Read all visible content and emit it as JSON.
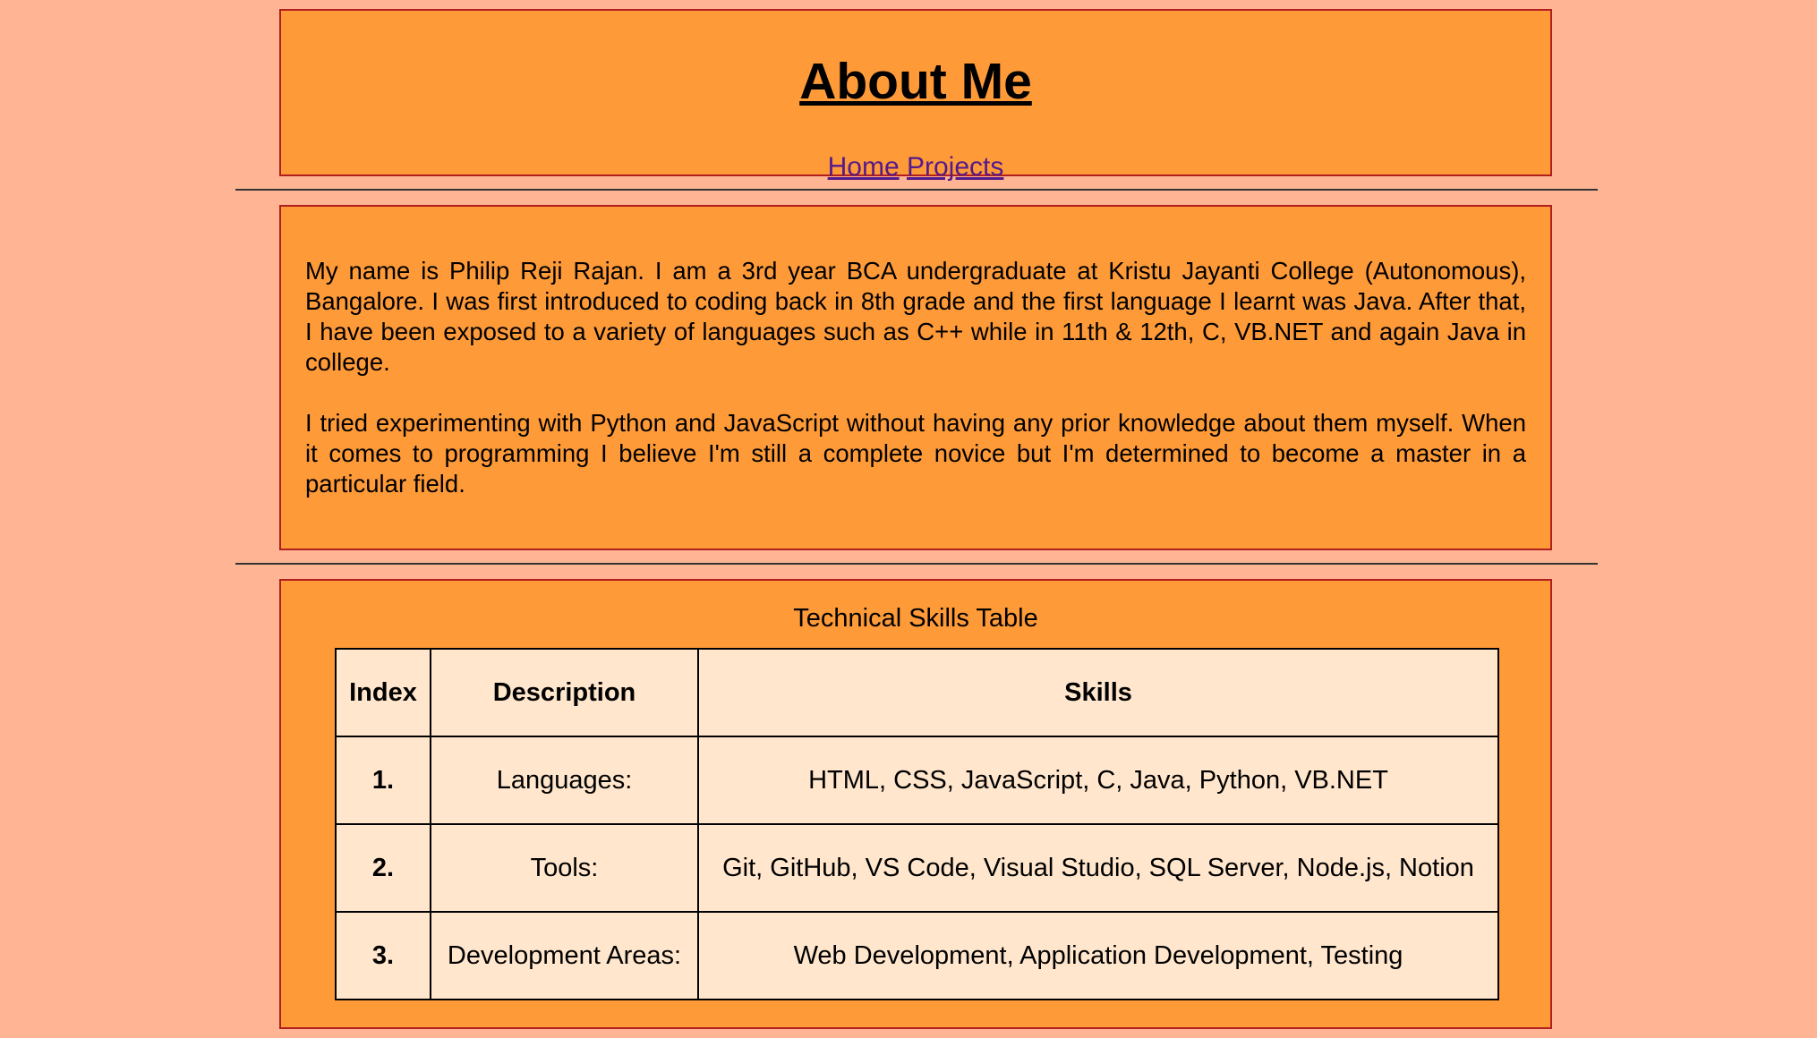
{
  "header": {
    "title": "About Me",
    "nav": [
      {
        "label": "Home"
      },
      {
        "label": "Projects"
      }
    ]
  },
  "about": {
    "paragraphs": [
      "My name is Philip Reji Rajan. I am a 3rd year BCA undergraduate at Kristu Jayanti College (Autonomous), Bangalore. I was first introduced to coding back in 8th grade and the first language I learnt was Java. After that, I have been exposed to a variety of languages such as C++ while in 11th & 12th, C, VB.NET and again Java in college.",
      "I tried experimenting with Python and JavaScript without having any prior knowledge about them myself. When it comes to programming I believe I'm still a complete novice but I'm determined to become a master in a particular field."
    ]
  },
  "skills": {
    "caption": "Technical Skills Table",
    "headers": [
      "Index",
      "Description",
      "Skills"
    ],
    "rows": [
      {
        "index": "1.",
        "description": "Languages:",
        "skills": "HTML, CSS, JavaScript, C, Java, Python, VB.NET"
      },
      {
        "index": "2.",
        "description": "Tools:",
        "skills": "Git, GitHub, VS Code, Visual Studio, SQL Server, Node.js, Notion"
      },
      {
        "index": "3.",
        "description": "Development Areas:",
        "skills": "Web Development, Application Development, Testing"
      }
    ]
  },
  "colors": {
    "page_background": "#ffb594",
    "box_background": "#ff9a38",
    "box_border": "#b01e1e",
    "table_background": "#ffe6cc",
    "link": "#551a8b"
  }
}
